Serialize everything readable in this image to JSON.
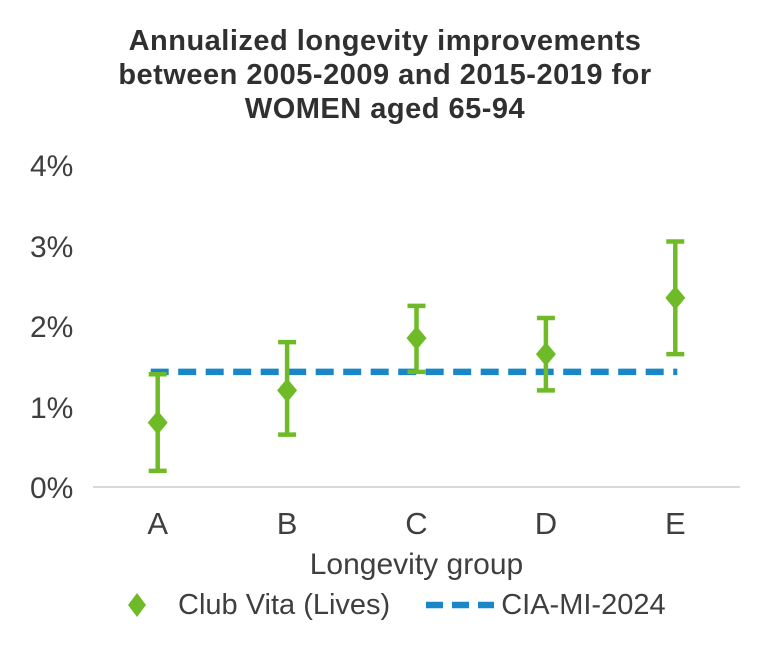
{
  "title": {
    "lines": [
      "Annualized longevity improvements",
      "between 2005-2009 and 2015-2019 for",
      "WOMEN aged 65-94"
    ]
  },
  "chart_data": {
    "type": "scatter",
    "title": "Annualized longevity improvements between 2005-2009 and 2015-2019 for WOMEN aged 65-94",
    "xlabel": "Longevity group",
    "ylabel": "",
    "categories": [
      "A",
      "B",
      "C",
      "D",
      "E"
    ],
    "ytick_labels": [
      "0%",
      "1%",
      "2%",
      "3%",
      "4%"
    ],
    "ytick_values": [
      0,
      1,
      2,
      3,
      4
    ],
    "ylim": [
      0,
      4
    ],
    "grid": "baseline-only",
    "legend_position": "bottom",
    "series": [
      {
        "name": "Club Vita (Lives)",
        "type": "scatter-with-error-bars",
        "marker": "diamond",
        "color": "#6FBB27",
        "values": [
          0.8,
          1.2,
          1.85,
          1.65,
          2.35
        ],
        "error_low": [
          0.2,
          0.65,
          1.43,
          1.2,
          1.65
        ],
        "error_high": [
          1.4,
          1.8,
          2.25,
          2.1,
          3.05
        ],
        "unit": "%"
      },
      {
        "name": "CIA-MI-2024",
        "type": "horizontal-dashed-line",
        "color": "#1986C8",
        "value": 1.43,
        "unit": "%"
      }
    ]
  },
  "colors": {
    "series_green": "#6FBB27",
    "series_blue": "#1986C8",
    "baseline_gray": "#D9D9D9",
    "text_dark": "#3F3F3F",
    "title_dark": "#303030"
  },
  "icons": {
    "legend_marker_1": "diamond-icon",
    "legend_marker_2": "dashed-line-icon"
  }
}
